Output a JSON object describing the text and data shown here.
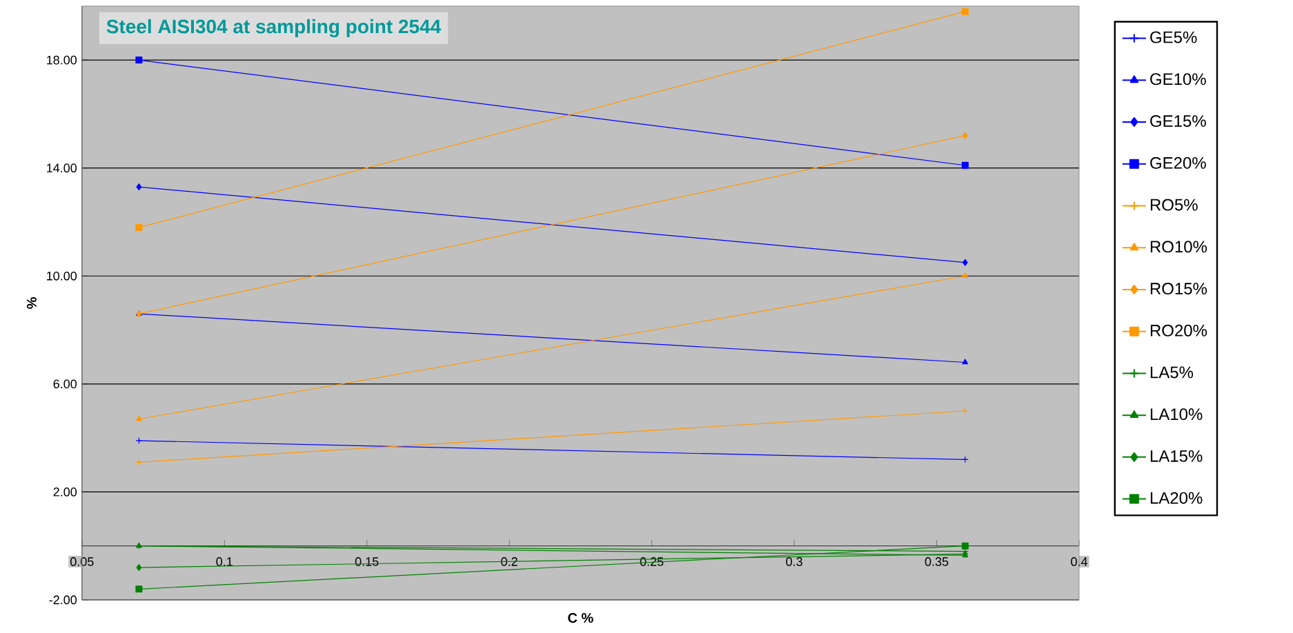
{
  "chart_data": {
    "type": "line",
    "title": "Steel AISI304 at sampling point 2544",
    "xlabel": "C %",
    "ylabel": "%",
    "x": [
      0.07,
      0.36
    ],
    "series": [
      {
        "name": "GE5%",
        "color": "#0000ff",
        "marker": "cross",
        "values": [
          3.9,
          3.2
        ]
      },
      {
        "name": "GE10%",
        "color": "#0000ff",
        "marker": "triangle",
        "values": [
          8.6,
          6.8
        ]
      },
      {
        "name": "GE15%",
        "color": "#0000ff",
        "marker": "diamond",
        "values": [
          13.3,
          10.5
        ]
      },
      {
        "name": "GE20%",
        "color": "#0000ff",
        "marker": "square",
        "values": [
          18.0,
          14.1
        ]
      },
      {
        "name": "RO5%",
        "color": "#ff9900",
        "marker": "cross",
        "values": [
          3.1,
          5.0
        ]
      },
      {
        "name": "RO10%",
        "color": "#ff9900",
        "marker": "triangle",
        "values": [
          4.7,
          10.0
        ]
      },
      {
        "name": "RO15%",
        "color": "#ff9900",
        "marker": "diamond",
        "values": [
          8.6,
          15.2
        ]
      },
      {
        "name": "RO20%",
        "color": "#ff9900",
        "marker": "square",
        "values": [
          11.8,
          19.8
        ]
      },
      {
        "name": "LA5%",
        "color": "#008000",
        "marker": "cross",
        "values": [
          0.0,
          -0.2
        ]
      },
      {
        "name": "LA10%",
        "color": "#008000",
        "marker": "triangle",
        "values": [
          0.0,
          -0.35
        ]
      },
      {
        "name": "LA15%",
        "color": "#008000",
        "marker": "diamond",
        "values": [
          -0.8,
          -0.3
        ]
      },
      {
        "name": "LA20%",
        "color": "#008000",
        "marker": "square",
        "values": [
          -1.6,
          0.0
        ]
      }
    ],
    "xlim": [
      0.05,
      0.4
    ],
    "xticks": [
      0.05,
      0.1,
      0.15,
      0.2,
      0.25,
      0.3,
      0.35,
      0.4
    ],
    "ylim": [
      -2,
      20
    ],
    "yticks": [
      {
        "value": -2,
        "label": "-2.00"
      },
      {
        "value": 2,
        "label": "2.00"
      },
      {
        "value": 6,
        "label": "6.00"
      },
      {
        "value": 10,
        "label": "10.00"
      },
      {
        "value": 14,
        "label": "14.00"
      },
      {
        "value": 18,
        "label": "18.00"
      }
    ],
    "grid": "y",
    "legend": "right",
    "line_style": "solid"
  }
}
